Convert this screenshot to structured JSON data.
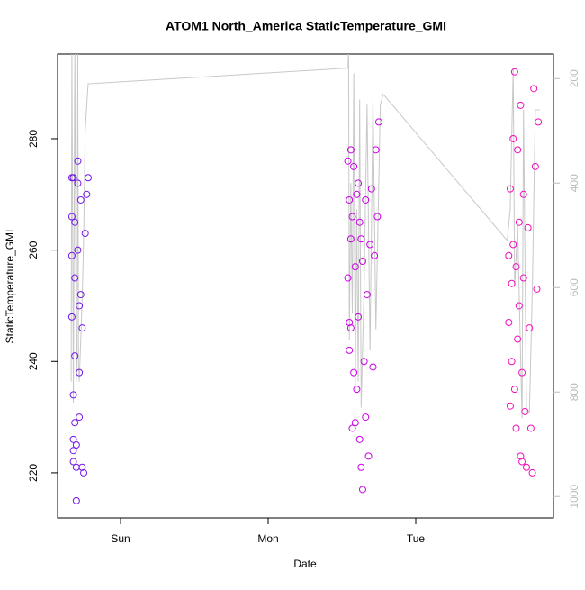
{
  "chart_data": {
    "type": "scatter",
    "title": "ATOM1 North_America StaticTemperature_GMI",
    "x_label": "Date",
    "y_label": "StaticTemperature_GMI",
    "xlim": [
      -0.427,
      2.933
    ],
    "xticks": [
      {
        "value": 0,
        "label": "Sun"
      },
      {
        "value": 1,
        "label": "Mon"
      },
      {
        "value": 2,
        "label": "Tue"
      }
    ],
    "ylim": [
      211.9,
      295.2
    ],
    "yticks": [
      220,
      240,
      260,
      280
    ],
    "y2lim": [
      1041,
      153
    ],
    "y2ticks": [
      200,
      400,
      600,
      800,
      1000
    ],
    "series": [
      {
        "color": "#7418e8",
        "x": [
          -0.33,
          -0.33,
          -0.33,
          -0.33,
          -0.32,
          -0.32,
          -0.32,
          -0.32,
          -0.32,
          -0.31,
          -0.31,
          -0.31,
          -0.31,
          -0.3,
          -0.3,
          -0.3,
          -0.29,
          -0.29,
          -0.29,
          -0.28,
          -0.28,
          -0.28,
          -0.27,
          -0.27,
          -0.26,
          -0.26,
          -0.25,
          -0.24,
          -0.23,
          -0.22
        ],
        "values": [
          273,
          266,
          259,
          248,
          234,
          226,
          224,
          222,
          273,
          265,
          255,
          241,
          229,
          225,
          221,
          215,
          276,
          272,
          260,
          250,
          238,
          230,
          269,
          252,
          246,
          221,
          220,
          263,
          270,
          273
        ]
      },
      {
        "color": "#cc00e6",
        "x": [
          1.54,
          1.54,
          1.55,
          1.55,
          1.55,
          1.56,
          1.56,
          1.56,
          1.57,
          1.57,
          1.58,
          1.58,
          1.59,
          1.59,
          1.6,
          1.6,
          1.61,
          1.61,
          1.62,
          1.62,
          1.63,
          1.63,
          1.64,
          1.64,
          1.65,
          1.66,
          1.66,
          1.67,
          1.68,
          1.69,
          1.7,
          1.71,
          1.72,
          1.73,
          1.74,
          1.75
        ],
        "values": [
          276,
          255,
          242,
          269,
          247,
          278,
          262,
          246,
          228,
          266,
          238,
          275,
          229,
          257,
          270,
          235,
          272,
          248,
          226,
          265,
          221,
          262,
          258,
          217,
          240,
          269,
          230,
          252,
          223,
          261,
          271,
          239,
          259,
          278,
          266,
          283
        ]
      },
      {
        "color": "#f010b8",
        "x": [
          2.63,
          2.63,
          2.64,
          2.64,
          2.65,
          2.65,
          2.66,
          2.66,
          2.67,
          2.67,
          2.68,
          2.68,
          2.69,
          2.69,
          2.7,
          2.7,
          2.71,
          2.71,
          2.72,
          2.72,
          2.73,
          2.73,
          2.74,
          2.75,
          2.76,
          2.77,
          2.78,
          2.79,
          2.8,
          2.81,
          2.82,
          2.83
        ],
        "values": [
          259,
          247,
          232,
          271,
          254,
          240,
          280,
          261,
          235,
          292,
          257,
          228,
          278,
          244,
          250,
          265,
          223,
          286,
          238,
          222,
          270,
          255,
          231,
          221,
          264,
          246,
          228,
          220,
          289,
          275,
          253,
          283
        ]
      },
      {
        "color": "#c8c8c8",
        "axis": "y2",
        "x": [
          -0.335,
          -0.33,
          -0.32,
          -0.31,
          -0.3,
          -0.295,
          -0.29,
          -0.285,
          -0.28,
          -0.27,
          -0.26,
          -0.25,
          -0.24,
          -0.22,
          1.54,
          1.545,
          1.55,
          1.56,
          1.57,
          1.58,
          1.59,
          1.6,
          1.61,
          1.62,
          1.63,
          1.65,
          1.67,
          1.69,
          1.71,
          1.73,
          1.76,
          1.78,
          2.62,
          2.64,
          2.66,
          2.67,
          2.69,
          2.72,
          2.73,
          2.75,
          2.77,
          2.79,
          2.81,
          2.84
        ],
        "values": [
          780,
          150,
          820,
          140,
          780,
          740,
          150,
          750,
          780,
          700,
          620,
          500,
          300,
          210,
          180,
          150,
          700,
          400,
          650,
          190,
          800,
          450,
          780,
          240,
          830,
          600,
          250,
          720,
          240,
          680,
          250,
          230,
          510,
          450,
          180,
          600,
          480,
          850,
          260,
          840,
          840,
          600,
          260,
          260
        ]
      }
    ]
  }
}
